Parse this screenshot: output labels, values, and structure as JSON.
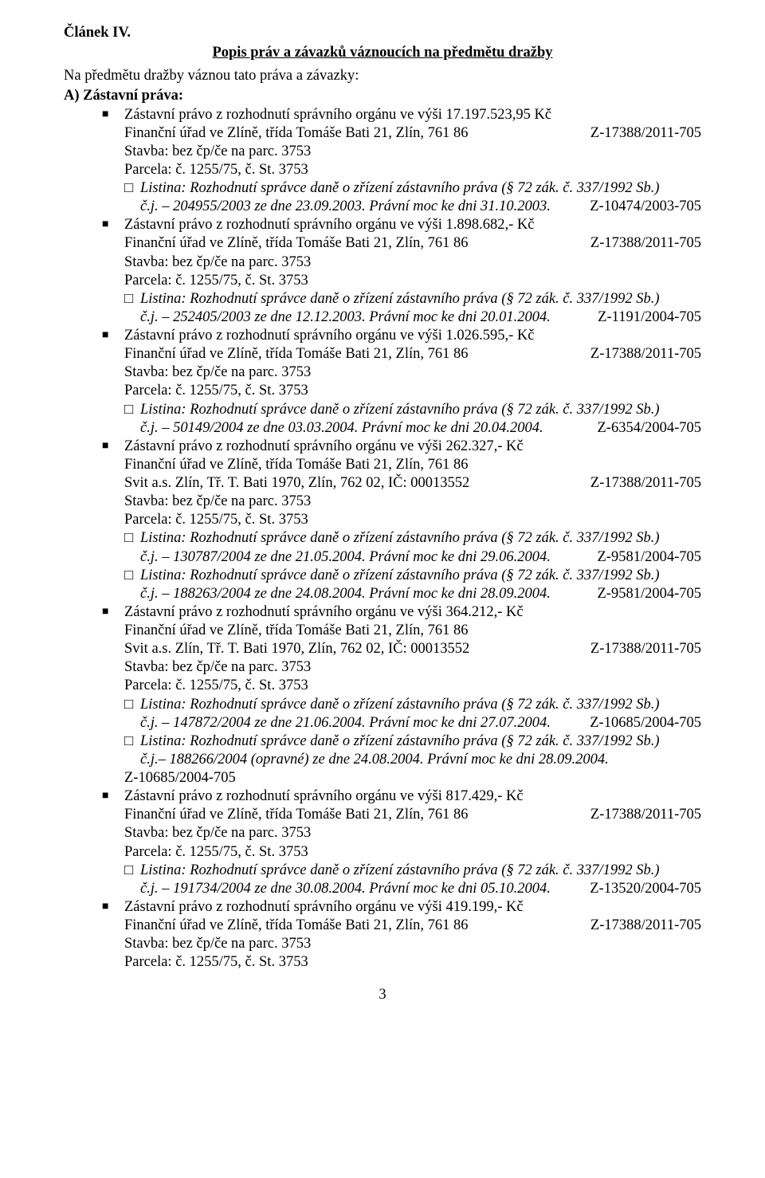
{
  "article_heading": "Článek IV.",
  "article_title": "Popis práv a závazků váznoucích na předmětu dražby",
  "intro": "Na předmětu dražby váznou tato práva a závazky:",
  "section_a_label": "A) Zástavní práva:",
  "fu_line": "Finanční úřad ve Zlíně, třída Tomáše Bati 21, Zlín, 761 86",
  "z_main": "Z-17388/2011-705",
  "stavba": "Stavba: bez čp/če na parc. 3753",
  "parcela": "Parcela: č. 1255/75, č. St. 3753",
  "listina_common": "Listina: Rozhodnutí správce daně o zřízení zástavního práva (§ 72 zák. č. 337/1992 Sb.)",
  "svit_line": "Svit a.s. Zlín, Tř. T. Bati 1970, Zlín, 762 02, IČ: 00013552",
  "items": [
    {
      "head": "Zástavní právo z rozhodnutí správního orgánu ve výši 17.197.523,95 Kč",
      "cj": "č.j. – 204955/2003 ze dne 23.09.2003. Právní moc ke dni 31.10.2003.",
      "cj_z": "Z-10474/2003-705"
    },
    {
      "head": "Zástavní právo z rozhodnutí správního orgánu ve výši 1.898.682,- Kč",
      "cj": "č.j. – 252405/2003 ze dne 12.12.2003. Právní moc ke dni 20.01.2004.",
      "cj_z": "Z-1191/2004-705"
    },
    {
      "head": "Zástavní právo z rozhodnutí správního orgánu ve výši 1.026.595,- Kč",
      "cj": "č.j. – 50149/2004 ze dne 03.03.2004. Právní moc ke dni 20.04.2004.",
      "cj_z": "Z-6354/2004-705"
    },
    {
      "head": "Zástavní právo z rozhodnutí správního orgánu ve výši 262.327,- Kč",
      "cj1": "č.j. – 130787/2004 ze dne 21.05.2004. Právní moc ke dni 29.06.2004.",
      "cj1_z": "Z-9581/2004-705",
      "cj2": "č.j. – 188263/2004 ze dne 24.08.2004. Právní moc ke dni 28.09.2004.",
      "cj2_z": "Z-9581/2004-705"
    },
    {
      "head": "Zástavní právo z rozhodnutí správního orgánu ve výši 364.212,- Kč",
      "cj1": "č.j. – 147872/2004 ze dne 21.06.2004. Právní moc ke dni 27.07.2004.",
      "cj1_z": "Z-10685/2004-705",
      "cj2": "č.j.– 188266/2004 (opravné) ze dne 24.08.2004. Právní moc ke dni 28.09.2004.",
      "cj2_z_alone": "Z-10685/2004-705"
    },
    {
      "head": "Zástavní právo z rozhodnutí správního orgánu ve výši 817.429,- Kč",
      "cj": "č.j. – 191734/2004 ze dne 30.08.2004. Právní moc ke dni 05.10.2004.",
      "cj_z": "Z-13520/2004-705"
    },
    {
      "head": "Zástavní právo z rozhodnutí správního orgánu ve výši 419.199,- Kč"
    }
  ],
  "page_number": "3"
}
